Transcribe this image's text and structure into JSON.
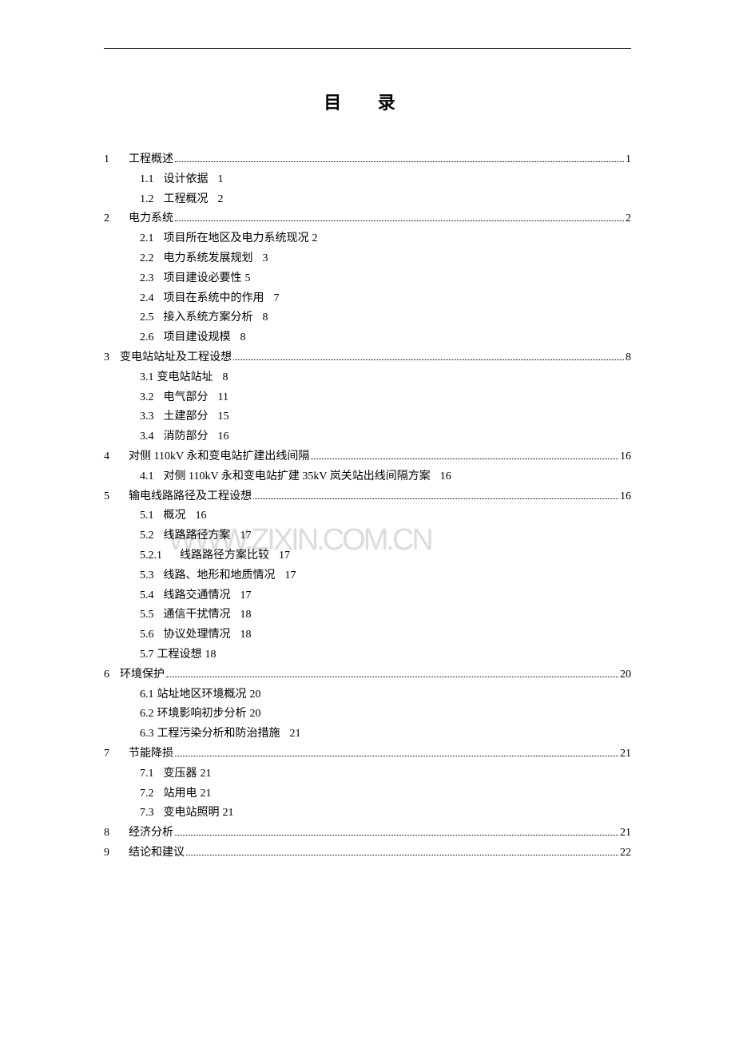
{
  "title": "目  录",
  "watermark": "WWW.ZIXIN.COM.CN",
  "toc": {
    "entries": [
      {
        "type": "main",
        "num": "1",
        "label": "工程概述",
        "page": "1"
      },
      {
        "type": "sub",
        "num": "1.1",
        "label": "设计依据",
        "page": "1"
      },
      {
        "type": "sub",
        "num": "1.2",
        "label": "工程概况",
        "page": "2"
      },
      {
        "type": "main",
        "num": "2",
        "label": "电力系统",
        "page": "2"
      },
      {
        "type": "sub",
        "num": "2.1",
        "label": "项目所在地区及电力系统现况",
        "page": "2",
        "tight": true
      },
      {
        "type": "sub",
        "num": "2.2",
        "label": "电力系统发展规划",
        "page": "3"
      },
      {
        "type": "sub",
        "num": "2.3",
        "label": "项目建设必要性",
        "page": "5",
        "tight": true
      },
      {
        "type": "sub",
        "num": "2.4",
        "label": "项目在系统中的作用",
        "page": "7"
      },
      {
        "type": "sub",
        "num": "2.5",
        "label": "接入系统方案分析",
        "page": "8"
      },
      {
        "type": "sub",
        "num": "2.6",
        "label": "项目建设规模",
        "page": "8"
      },
      {
        "type": "main",
        "num": "3",
        "label": "变电站站址及工程设想",
        "page": "8",
        "nospace": true
      },
      {
        "type": "sub",
        "num": "3.1",
        "label": "变电站站址",
        "page": "8",
        "nolabelspace": true
      },
      {
        "type": "sub",
        "num": "3.2",
        "label": "电气部分",
        "page": "11"
      },
      {
        "type": "sub",
        "num": "3.3",
        "label": "土建部分",
        "page": "15"
      },
      {
        "type": "sub",
        "num": "3.4",
        "label": "消防部分",
        "page": "16"
      },
      {
        "type": "main",
        "num": "4",
        "label": "对侧 110kV 永和变电站扩建出线间隔",
        "page": "16"
      },
      {
        "type": "sub",
        "num": "4.1",
        "label": "对侧 110kV 永和变电站扩建 35kV 岚关站出线间隔方案",
        "page": "16"
      },
      {
        "type": "main",
        "num": "5",
        "label": "输电线路路径及工程设想",
        "page": "16"
      },
      {
        "type": "sub",
        "num": "5.1",
        "label": "概况",
        "page": "16"
      },
      {
        "type": "sub",
        "num": "5.2",
        "label": "线路路径方案",
        "page": "17"
      },
      {
        "type": "sub",
        "num": "5.2.1",
        "label": "线路路径方案比较",
        "page": "17",
        "indent2": true
      },
      {
        "type": "sub",
        "num": "5.3",
        "label": "线路、地形和地质情况",
        "page": "17"
      },
      {
        "type": "sub",
        "num": "5.4",
        "label": "线路交通情况",
        "page": "17"
      },
      {
        "type": "sub",
        "num": "5.5",
        "label": "通信干扰情况",
        "page": "18"
      },
      {
        "type": "sub",
        "num": "5.6",
        "label": "协议处理情况",
        "page": "18"
      },
      {
        "type": "sub",
        "num": "5.7",
        "label": "工程设想",
        "page": "18",
        "nolabelspace": true,
        "tight": true
      },
      {
        "type": "main",
        "num": "6",
        "label": "环境保护",
        "page": "20",
        "nospace": true
      },
      {
        "type": "sub",
        "num": "6.1",
        "label": "站址地区环境概况",
        "page": "20",
        "nolabelspace": true,
        "tight": true
      },
      {
        "type": "sub",
        "num": "6.2",
        "label": "环境影响初步分析",
        "page": "20",
        "nolabelspace": true,
        "tight": true
      },
      {
        "type": "sub",
        "num": "6.3",
        "label": "工程污染分析和防治措施",
        "page": "21",
        "nolabelspace": true
      },
      {
        "type": "main",
        "num": "7",
        "label": "节能降损",
        "page": "21"
      },
      {
        "type": "sub",
        "num": "7.1",
        "label": "变压器",
        "page": "21",
        "tight": true
      },
      {
        "type": "sub",
        "num": "7.2",
        "label": "站用电",
        "page": "21",
        "tight": true
      },
      {
        "type": "sub",
        "num": "7.3",
        "label": "变电站照明",
        "page": "21",
        "tight": true
      },
      {
        "type": "main",
        "num": "8",
        "label": "经济分析",
        "page": "21"
      },
      {
        "type": "main",
        "num": "9",
        "label": "结论和建议",
        "page": "22"
      }
    ]
  }
}
